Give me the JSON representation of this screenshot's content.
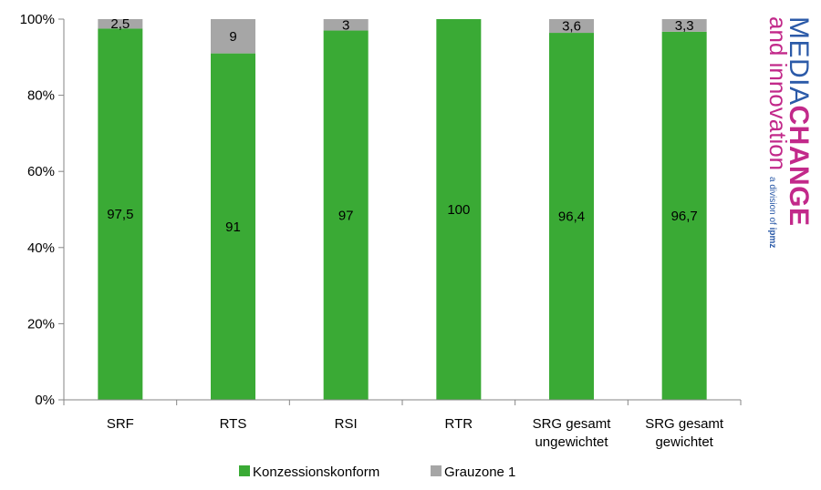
{
  "chart_data": {
    "type": "bar",
    "stacked": true,
    "percent": true,
    "categories": [
      [
        "SRF"
      ],
      [
        "RTS"
      ],
      [
        "RSI"
      ],
      [
        "RTR"
      ],
      [
        "SRG gesamt",
        "ungewichtet"
      ],
      [
        "SRG gesamt",
        "gewichtet"
      ]
    ],
    "series": [
      {
        "name": "Konzessionskonform",
        "color": "#3aaa35",
        "values": [
          97.5,
          91,
          97,
          100,
          96.4,
          96.7
        ],
        "labels": [
          "97,5",
          "91",
          "97",
          "100",
          "96,4",
          "96,7"
        ]
      },
      {
        "name": "Grauzone 1",
        "color": "#a6a6a6",
        "values": [
          2.5,
          9,
          3,
          0,
          3.6,
          3.3
        ],
        "labels": [
          "2,5",
          "9",
          "3",
          "",
          "3,6",
          "3,3"
        ]
      }
    ],
    "yticks": [
      "0%",
      "20%",
      "40%",
      "60%",
      "80%",
      "100%"
    ],
    "ylim": [
      0,
      100
    ],
    "legend": "bottom",
    "grid": false
  },
  "logo": {
    "line1_a": "MEDIA",
    "line1_b": "CHANGE",
    "line2": "and innovation",
    "line3": "a division of",
    "line3_b": "ipmz",
    "colors": {
      "blue": "#2b5aa8",
      "magenta": "#c2298a"
    }
  }
}
